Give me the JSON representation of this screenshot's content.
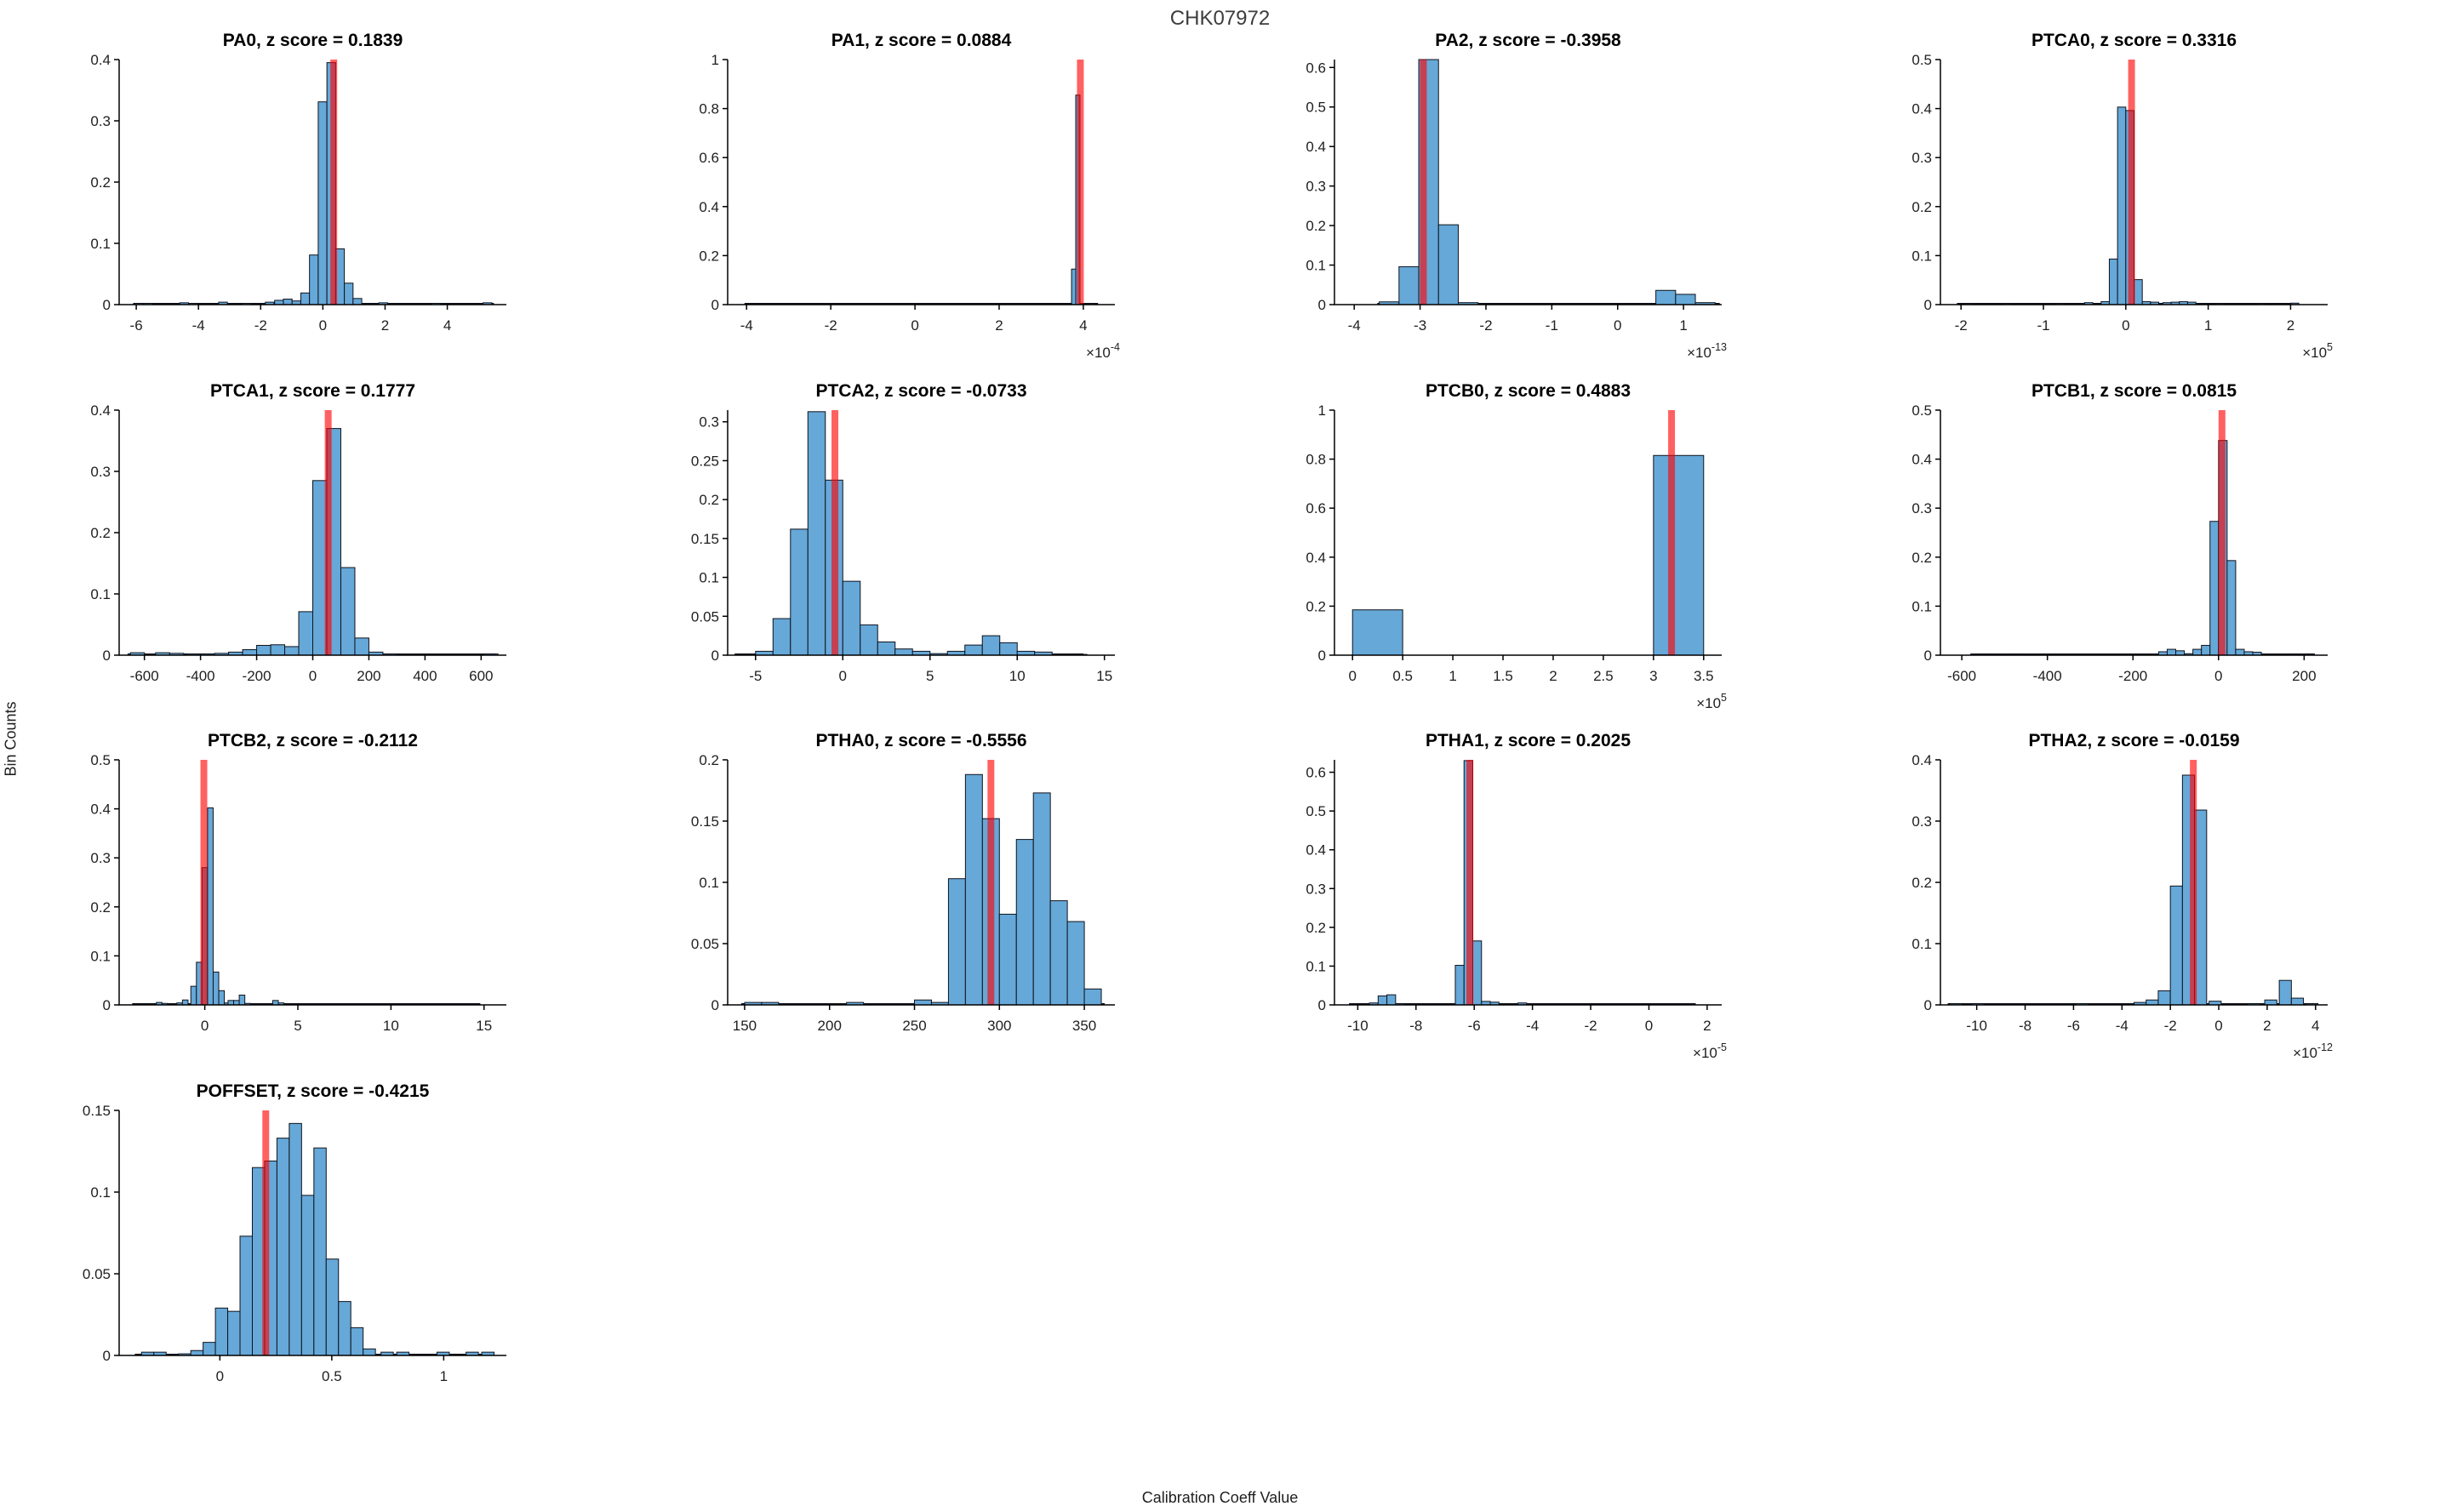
{
  "figure": {
    "title": "CHK07972",
    "xlabel": "Calibration Coeff Value",
    "ylabel": "Bin Counts"
  },
  "style": {
    "bar_fill": "#66a8d8",
    "bar_edge": "#10131c",
    "red_line": "#ff0000",
    "red_opacity": 0.62,
    "spine_color": "#000000",
    "tick_label_color": "#1f1f1f",
    "title_color": "#000000",
    "figure_title_color": "#3d3d3d"
  },
  "chart_data": [
    {
      "type": "bar",
      "name": "PA0",
      "title": "PA0, z score = 0.1839",
      "z_score": 0.1839,
      "xlim": [
        -6.55,
        5.9
      ],
      "ylim": [
        0,
        0.4
      ],
      "xticks": [
        -6,
        -4,
        -2,
        0,
        2,
        4
      ],
      "yticks": [
        0,
        0.1,
        0.2,
        0.3,
        0.4
      ],
      "x_exponent": null,
      "bin_width": 0.28,
      "red_line_x": 0.35,
      "baseline": [
        -6.1,
        5.5
      ],
      "bars": [
        [
          -6.05,
          0.002
        ],
        [
          -5.75,
          0.002
        ],
        [
          -4.6,
          0.003
        ],
        [
          -4.3,
          0.002
        ],
        [
          -3.35,
          0.004
        ],
        [
          -2.6,
          0.002
        ],
        [
          -1.85,
          0.004
        ],
        [
          -1.55,
          0.007
        ],
        [
          -1.27,
          0.009
        ],
        [
          -0.99,
          0.006
        ],
        [
          -0.71,
          0.019
        ],
        [
          -0.43,
          0.081
        ],
        [
          -0.15,
          0.331
        ],
        [
          0.13,
          0.395
        ],
        [
          0.41,
          0.091
        ],
        [
          0.69,
          0.035
        ],
        [
          0.97,
          0.01
        ],
        [
          1.8,
          0.003
        ],
        [
          3.5,
          0.002
        ],
        [
          5.15,
          0.003
        ]
      ]
    },
    {
      "type": "bar",
      "name": "PA1",
      "title": "PA1, z score = 0.0884",
      "z_score": 0.0884,
      "xlim": [
        -4.45,
        4.75
      ],
      "ylim": [
        0,
        1
      ],
      "xticks": [
        -4,
        -2,
        0,
        2,
        4
      ],
      "yticks": [
        0,
        0.2,
        0.4,
        0.6,
        0.8,
        1
      ],
      "x_exponent": "-4",
      "bin_width": 0.1,
      "red_line_x": 3.93,
      "baseline": [
        -4.05,
        4.35
      ],
      "bars": [
        [
          3.72,
          0.145
        ],
        [
          3.82,
          0.855
        ],
        [
          4.15,
          0.004
        ]
      ]
    },
    {
      "type": "bar",
      "name": "PA2",
      "title": "PA2, z score = -0.3958",
      "z_score": -0.3958,
      "xlim": [
        -4.3,
        1.58
      ],
      "ylim": [
        0,
        0.62
      ],
      "xticks": [
        -4,
        -3,
        -2,
        -1,
        0,
        1
      ],
      "yticks": [
        0,
        0.1,
        0.2,
        0.3,
        0.4,
        0.5,
        0.6
      ],
      "x_exponent": "-13",
      "bin_width": 0.3,
      "red_line_x": -2.95,
      "baseline": [
        -3.65,
        1.55
      ],
      "bars": [
        [
          -3.62,
          0.007
        ],
        [
          -3.32,
          0.096
        ],
        [
          -3.02,
          0.62
        ],
        [
          -2.72,
          0.202
        ],
        [
          -2.42,
          0.005
        ],
        [
          0.58,
          0.036
        ],
        [
          0.88,
          0.026
        ],
        [
          1.18,
          0.005
        ]
      ]
    },
    {
      "type": "bar",
      "name": "PTCA0",
      "title": "PTCA0, z score = 0.3316",
      "z_score": 0.3316,
      "xlim": [
        -2.25,
        2.45
      ],
      "ylim": [
        0,
        0.5
      ],
      "xticks": [
        -2,
        -1,
        0,
        1,
        2
      ],
      "yticks": [
        0,
        0.1,
        0.2,
        0.3,
        0.4,
        0.5
      ],
      "x_exponent": "5",
      "bin_width": 0.1,
      "red_line_x": 0.07,
      "baseline": [
        -2.05,
        2.1
      ],
      "bars": [
        [
          -1.95,
          0.002
        ],
        [
          -1.5,
          0.002
        ],
        [
          -0.85,
          0.002
        ],
        [
          -0.5,
          0.004
        ],
        [
          -0.3,
          0.006
        ],
        [
          -0.2,
          0.093
        ],
        [
          -0.1,
          0.403
        ],
        [
          0,
          0.396
        ],
        [
          0.1,
          0.051
        ],
        [
          0.2,
          0.006
        ],
        [
          0.3,
          0.005
        ],
        [
          0.45,
          0.004
        ],
        [
          0.55,
          0.005
        ],
        [
          0.65,
          0.006
        ],
        [
          0.75,
          0.005
        ],
        [
          1.1,
          0.002
        ],
        [
          1.6,
          0.002
        ],
        [
          2,
          0.003
        ]
      ]
    },
    {
      "type": "bar",
      "name": "PTCA1",
      "title": "PTCA1, z score = 0.1777",
      "z_score": 0.1777,
      "xlim": [
        -690,
        690
      ],
      "ylim": [
        0,
        0.4
      ],
      "xticks": [
        -600,
        -400,
        -200,
        0,
        200,
        400,
        600
      ],
      "yticks": [
        0,
        0.1,
        0.2,
        0.3,
        0.4
      ],
      "x_exponent": null,
      "bin_width": 50,
      "red_line_x": 55,
      "baseline": [
        -660,
        650
      ],
      "bars": [
        [
          -650,
          0.004
        ],
        [
          -560,
          0.004
        ],
        [
          -510,
          0.003
        ],
        [
          -450,
          0.002
        ],
        [
          -400,
          0.002
        ],
        [
          -350,
          0.003
        ],
        [
          -300,
          0.005
        ],
        [
          -250,
          0.009
        ],
        [
          -200,
          0.016
        ],
        [
          -150,
          0.017
        ],
        [
          -100,
          0.014
        ],
        [
          -50,
          0.071
        ],
        [
          0,
          0.285
        ],
        [
          50,
          0.37
        ],
        [
          100,
          0.143
        ],
        [
          150,
          0.028
        ],
        [
          200,
          0.005
        ],
        [
          250,
          0.002
        ],
        [
          610,
          0.002
        ]
      ]
    },
    {
      "type": "bar",
      "name": "PTCA2",
      "title": "PTCA2, z score = -0.0733",
      "z_score": -0.0733,
      "xlim": [
        -6.6,
        15.6
      ],
      "ylim": [
        0,
        0.315
      ],
      "xticks": [
        -5,
        0,
        5,
        10,
        15
      ],
      "yticks": [
        0,
        0.05,
        0.1,
        0.15,
        0.2,
        0.25,
        0.3
      ],
      "x_exponent": null,
      "bin_width": 1,
      "red_line_x": -0.45,
      "baseline": [
        -6.2,
        13.8
      ],
      "bars": [
        [
          -6,
          0.001
        ],
        [
          -5,
          0.005
        ],
        [
          -4,
          0.047
        ],
        [
          -3,
          0.162
        ],
        [
          -2,
          0.313
        ],
        [
          -1,
          0.225
        ],
        [
          0,
          0.095
        ],
        [
          1,
          0.039
        ],
        [
          2,
          0.017
        ],
        [
          3,
          0.008
        ],
        [
          4,
          0.005
        ],
        [
          5,
          0.002
        ],
        [
          6,
          0.005
        ],
        [
          7,
          0.013
        ],
        [
          8,
          0.025
        ],
        [
          9,
          0.016
        ],
        [
          10,
          0.005
        ],
        [
          11,
          0.004
        ],
        [
          13,
          0.001
        ]
      ]
    },
    {
      "type": "bar",
      "name": "PTCB0",
      "title": "PTCB0, z score = 0.4883",
      "z_score": 0.4883,
      "xlim": [
        -0.18,
        3.68
      ],
      "ylim": [
        0,
        1
      ],
      "xticks": [
        0,
        0.5,
        1,
        1.5,
        2,
        2.5,
        3,
        3.5
      ],
      "yticks": [
        0,
        0.2,
        0.4,
        0.6,
        0.8,
        1
      ],
      "x_exponent": "5",
      "bin_width": 0.5,
      "red_line_x": 3.18,
      "baseline": null,
      "bars": [
        [
          0,
          0.185
        ],
        [
          3,
          0.815
        ]
      ]
    },
    {
      "type": "bar",
      "name": "PTCB1",
      "title": "PTCB1, z score = 0.0815",
      "z_score": 0.0815,
      "xlim": [
        -650,
        255
      ],
      "ylim": [
        0,
        0.5
      ],
      "xticks": [
        -600,
        -400,
        -200,
        0,
        200
      ],
      "yticks": [
        0,
        0.1,
        0.2,
        0.3,
        0.4,
        0.5
      ],
      "x_exponent": null,
      "bin_width": 20,
      "red_line_x": 8,
      "baseline": [
        -580,
        225
      ],
      "bars": [
        [
          -560,
          0.002
        ],
        [
          -480,
          0.002
        ],
        [
          -140,
          0.007
        ],
        [
          -120,
          0.012
        ],
        [
          -100,
          0.009
        ],
        [
          -80,
          0.003
        ],
        [
          -60,
          0.012
        ],
        [
          -40,
          0.02
        ],
        [
          -20,
          0.273
        ],
        [
          0,
          0.438
        ],
        [
          20,
          0.193
        ],
        [
          40,
          0.012
        ],
        [
          60,
          0.007
        ],
        [
          80,
          0.006
        ],
        [
          160,
          0.002
        ],
        [
          200,
          0.002
        ]
      ]
    },
    {
      "type": "bar",
      "name": "PTCB2",
      "title": "PTCB2, z score = -0.2112",
      "z_score": -0.2112,
      "xlim": [
        -4.6,
        16.2
      ],
      "ylim": [
        0,
        0.5
      ],
      "xticks": [
        0,
        5,
        10,
        15
      ],
      "yticks": [
        0,
        0.1,
        0.2,
        0.3,
        0.4,
        0.5
      ],
      "x_exponent": null,
      "bin_width": 0.3,
      "red_line_x": -0.05,
      "baseline": [
        -3.9,
        14.8
      ],
      "bars": [
        [
          -2.6,
          0.005
        ],
        [
          -2.3,
          0.003
        ],
        [
          -1.5,
          0.004
        ],
        [
          -1.2,
          0.01
        ],
        [
          -0.75,
          0.038
        ],
        [
          -0.45,
          0.087
        ],
        [
          -0.15,
          0.28
        ],
        [
          0.15,
          0.402
        ],
        [
          0.45,
          0.067
        ],
        [
          0.75,
          0.029
        ],
        [
          1.05,
          0.004
        ],
        [
          1.25,
          0.009
        ],
        [
          1.55,
          0.009
        ],
        [
          1.85,
          0.02
        ],
        [
          2.15,
          0.003
        ],
        [
          3.65,
          0.009
        ],
        [
          3.95,
          0.004
        ]
      ]
    },
    {
      "type": "bar",
      "name": "PTHA0",
      "title": "PTHA0, z score = -0.5556",
      "z_score": -0.5556,
      "xlim": [
        140,
        368
      ],
      "ylim": [
        0,
        0.2
      ],
      "xticks": [
        150,
        200,
        250,
        300,
        350
      ],
      "yticks": [
        0,
        0.05,
        0.1,
        0.15,
        0.2
      ],
      "x_exponent": null,
      "bin_width": 10,
      "red_line_x": 295,
      "baseline": [
        148,
        362
      ],
      "bars": [
        [
          150,
          0.002
        ],
        [
          160,
          0.002
        ],
        [
          210,
          0.002
        ],
        [
          250,
          0.004
        ],
        [
          260,
          0.002
        ],
        [
          270,
          0.103
        ],
        [
          280,
          0.188
        ],
        [
          290,
          0.152
        ],
        [
          300,
          0.074
        ],
        [
          310,
          0.135
        ],
        [
          320,
          0.173
        ],
        [
          330,
          0.085
        ],
        [
          340,
          0.068
        ],
        [
          350,
          0.013
        ]
      ]
    },
    {
      "type": "bar",
      "name": "PTHA1",
      "title": "PTHA1, z score = 0.2025",
      "z_score": 0.2025,
      "xlim": [
        -10.8,
        2.5
      ],
      "ylim": [
        0,
        0.632
      ],
      "xticks": [
        -10,
        -8,
        -6,
        -4,
        -2,
        0,
        2
      ],
      "yticks": [
        0,
        0.1,
        0.2,
        0.3,
        0.4,
        0.5,
        0.6
      ],
      "x_exponent": "-5",
      "bin_width": 0.3,
      "red_line_x": -6.15,
      "baseline": [
        -10.3,
        1.6
      ],
      "bars": [
        [
          -9.6,
          0.005
        ],
        [
          -9.3,
          0.023
        ],
        [
          -9,
          0.026
        ],
        [
          -8.7,
          0.003
        ],
        [
          -7.3,
          0.002
        ],
        [
          -6.65,
          0.102
        ],
        [
          -6.35,
          0.63
        ],
        [
          -6.05,
          0.165
        ],
        [
          -5.75,
          0.009
        ],
        [
          -5.45,
          0.007
        ],
        [
          -4.5,
          0.005
        ],
        [
          1.3,
          0.002
        ]
      ]
    },
    {
      "type": "bar",
      "name": "PTHA2",
      "title": "PTHA2, z score = -0.0159",
      "z_score": -0.0159,
      "xlim": [
        -11.5,
        4.5
      ],
      "ylim": [
        0,
        0.4
      ],
      "xticks": [
        -10,
        -8,
        -6,
        -4,
        -2,
        0,
        2,
        4
      ],
      "yticks": [
        0,
        0.1,
        0.2,
        0.3,
        0.4
      ],
      "x_exponent": "-12",
      "bin_width": 0.5,
      "red_line_x": -1.05,
      "baseline": [
        -11.2,
        4.1
      ],
      "bars": [
        [
          -11.1,
          0.002
        ],
        [
          -10.2,
          0.002
        ],
        [
          -5.9,
          0.002
        ],
        [
          -3.5,
          0.004
        ],
        [
          -3,
          0.008
        ],
        [
          -2.5,
          0.023
        ],
        [
          -2,
          0.194
        ],
        [
          -1.5,
          0.375
        ],
        [
          -1,
          0.318
        ],
        [
          -0.4,
          0.006
        ],
        [
          1.2,
          0.002
        ],
        [
          1.9,
          0.008
        ],
        [
          2.5,
          0.04
        ],
        [
          3,
          0.011
        ],
        [
          3.6,
          0.002
        ]
      ]
    },
    {
      "type": "bar",
      "name": "POFFSET",
      "title": "POFFSET, z score = -0.4215",
      "z_score": -0.4215,
      "xlim": [
        -0.45,
        1.28
      ],
      "ylim": [
        0,
        0.15
      ],
      "xticks": [
        0,
        0.5,
        1
      ],
      "yticks": [
        0,
        0.05,
        0.1,
        0.15
      ],
      "x_exponent": null,
      "bin_width": 0.055,
      "red_line_x": 0.205,
      "baseline": [
        -0.38,
        1.22
      ],
      "bars": [
        [
          -0.35,
          0.002
        ],
        [
          -0.295,
          0.002
        ],
        [
          -0.185,
          0.001
        ],
        [
          -0.13,
          0.003
        ],
        [
          -0.075,
          0.008
        ],
        [
          -0.02,
          0.029
        ],
        [
          0.035,
          0.027
        ],
        [
          0.09,
          0.073
        ],
        [
          0.145,
          0.115
        ],
        [
          0.2,
          0.119
        ],
        [
          0.255,
          0.133
        ],
        [
          0.31,
          0.142
        ],
        [
          0.365,
          0.098
        ],
        [
          0.42,
          0.127
        ],
        [
          0.475,
          0.059
        ],
        [
          0.53,
          0.033
        ],
        [
          0.585,
          0.017
        ],
        [
          0.64,
          0.004
        ],
        [
          0.72,
          0.002
        ],
        [
          0.79,
          0.002
        ],
        [
          0.97,
          0.002
        ],
        [
          1.1,
          0.002
        ],
        [
          1.17,
          0.002
        ]
      ]
    }
  ]
}
